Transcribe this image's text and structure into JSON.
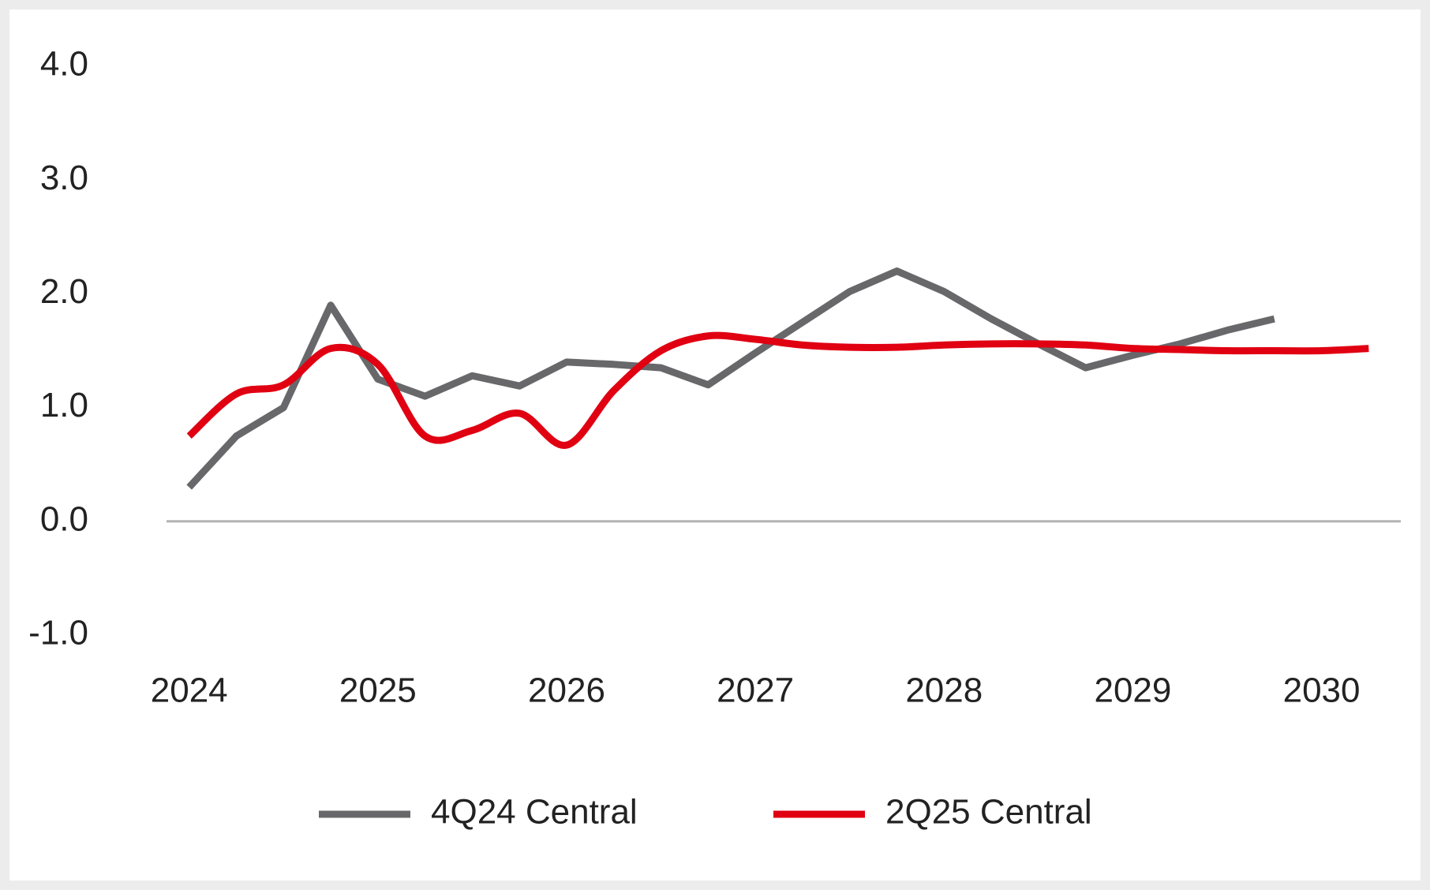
{
  "chart_data": {
    "type": "line",
    "x": [
      2024,
      2024.25,
      2024.5,
      2024.75,
      2025,
      2025.25,
      2025.5,
      2025.75,
      2026,
      2026.25,
      2026.5,
      2026.75,
      2027,
      2027.25,
      2027.5,
      2027.75,
      2028,
      2028.25,
      2028.5,
      2028.75,
      2029,
      2029.25,
      2029.5,
      2029.75,
      2030,
      2030.25
    ],
    "series": [
      {
        "name": "4Q24 Central",
        "color": "#68686b",
        "smooth": false,
        "values": [
          0.3,
          0.75,
          1.0,
          1.9,
          1.25,
          1.1,
          1.28,
          1.19,
          1.4,
          1.38,
          1.35,
          1.2,
          1.48,
          1.75,
          2.02,
          2.2,
          2.02,
          1.78,
          1.56,
          1.35,
          1.46,
          1.56,
          1.68,
          1.78,
          null,
          null
        ]
      },
      {
        "name": "2Q25 Central",
        "color": "#e00012",
        "smooth": true,
        "values": [
          0.75,
          1.12,
          1.2,
          1.52,
          1.38,
          0.75,
          0.8,
          0.95,
          0.67,
          1.15,
          1.5,
          1.63,
          1.6,
          1.55,
          1.53,
          1.53,
          1.55,
          1.56,
          1.56,
          1.55,
          1.52,
          1.51,
          1.5,
          1.5,
          1.5,
          1.52
        ]
      }
    ],
    "xlim": [
      2023.88,
      2030.42
    ],
    "xticks": [
      2024,
      2025,
      2026,
      2027,
      2028,
      2029,
      2030
    ],
    "ylim": [
      -1,
      4
    ],
    "yticks": [
      {
        "value": -1,
        "label": "-1.0"
      },
      {
        "value": 0,
        "label": "0.0"
      },
      {
        "value": 1,
        "label": "1.0"
      },
      {
        "value": 2,
        "label": "2.0"
      },
      {
        "value": 3,
        "label": "3.0"
      },
      {
        "value": 4,
        "label": "4.0"
      }
    ],
    "zero_line": true,
    "grid": false,
    "legend": "bottom"
  }
}
